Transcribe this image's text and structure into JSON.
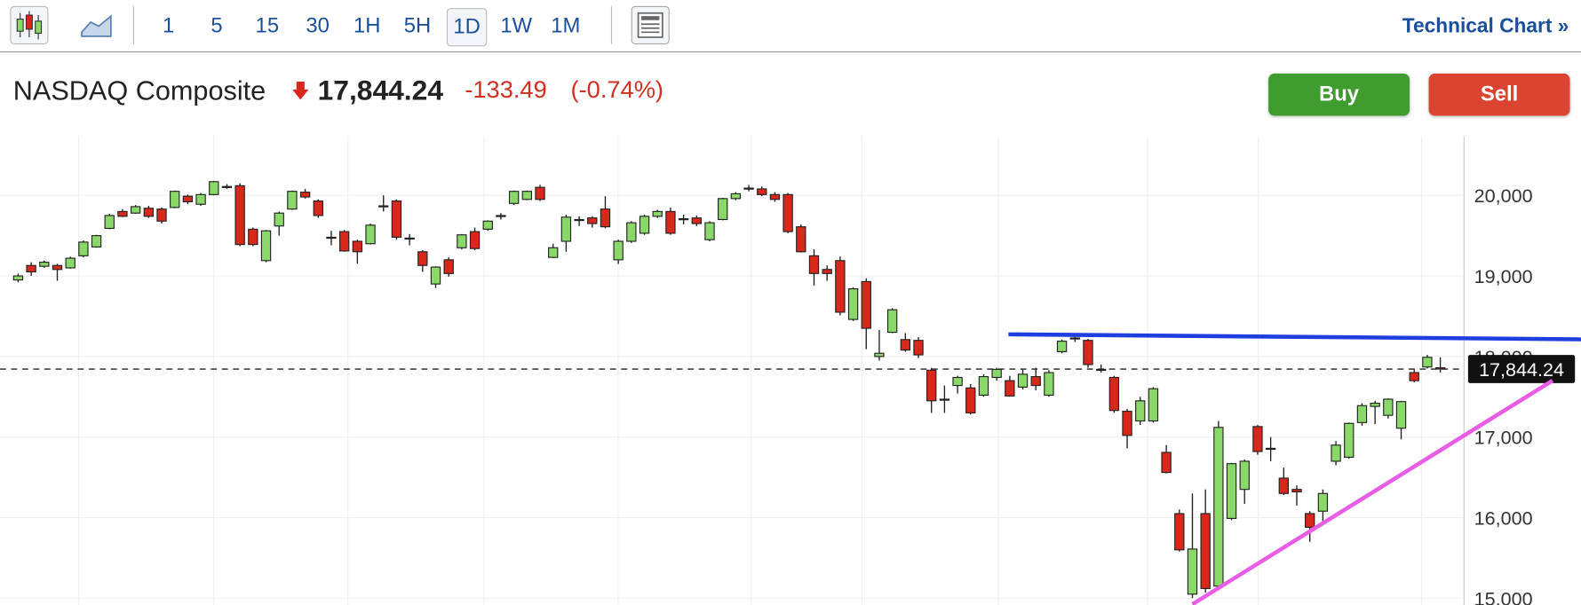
{
  "toolbar": {
    "intervals": [
      "1",
      "5",
      "15",
      "30",
      "1H",
      "5H",
      "1D",
      "1W",
      "1M"
    ],
    "link": "Technical Chart »"
  },
  "header": {
    "name": "NASDAQ Composite",
    "change": "-133.49",
    "change_percent": "(-0.74%)"
  },
  "buttons": {
    "buy": "Buy",
    "sell": "Sell"
  },
  "chart_data": {
    "type": "candlestick",
    "up_color": "#8ad86a",
    "down_color": "#d8281c",
    "open": [
      18950,
      19130,
      19120,
      19130,
      19100,
      19250,
      19360,
      19590,
      19800,
      19780,
      19840,
      19830,
      19850,
      19990,
      19890,
      20010,
      20100,
      20120,
      19580,
      19190,
      19620,
      19830,
      20040,
      19930,
      19480,
      19550,
      19430,
      19400,
      19860,
      19930,
      19470,
      19300,
      18900,
      19200,
      19350,
      19550,
      19580,
      19740,
      19900,
      19950,
      20100,
      19230,
      19430,
      19690,
      19720,
      19830,
      19200,
      19430,
      19530,
      19740,
      19800,
      19700,
      19720,
      19450,
      19700,
      19960,
      20080,
      20080,
      20010,
      20010,
      19610,
      19250,
      19080,
      19190,
      18460,
      18930,
      18000,
      18300,
      18210,
      18200,
      17830,
      17460,
      17640,
      17610,
      17520,
      17740,
      17700,
      17620,
      17750,
      17520,
      18060,
      18220,
      18200,
      17840,
      17740,
      17320,
      17200,
      17200,
      16810,
      16050,
      15050,
      16050,
      15150,
      15990,
      16350,
      17130,
      16860,
      16490,
      16350,
      16050,
      16080,
      16700,
      16750,
      17180,
      17380,
      17270,
      17110,
      17800,
      17870,
      17860
    ],
    "high": [
      19030,
      19170,
      19190,
      19150,
      19240,
      19440,
      19510,
      19770,
      19830,
      19880,
      19870,
      19850,
      20060,
      20010,
      20030,
      20180,
      20140,
      20150,
      19600,
      19570,
      19800,
      20060,
      20080,
      19950,
      19560,
      19570,
      19450,
      19650,
      20000,
      19950,
      19520,
      19320,
      19120,
      19230,
      19520,
      19600,
      19690,
      19780,
      20060,
      20060,
      20130,
      19400,
      19760,
      19740,
      19740,
      19990,
      19450,
      19680,
      19760,
      19820,
      19850,
      19760,
      19750,
      19680,
      19970,
      20040,
      20130,
      20110,
      20040,
      20030,
      19640,
      19330,
      19130,
      19240,
      18860,
      18970,
      18330,
      18600,
      18290,
      18240,
      17860,
      17640,
      17760,
      17660,
      17780,
      17860,
      17760,
      17850,
      17860,
      17830,
      18210,
      18270,
      18220,
      17900,
      17760,
      17350,
      17500,
      17620,
      16900,
      16100,
      16300,
      16350,
      17200,
      16680,
      16720,
      17150,
      17000,
      16620,
      16400,
      16080,
      16350,
      16950,
      17180,
      17420,
      17450,
      17480,
      17450,
      17850,
      18020,
      17990
    ],
    "low": [
      18920,
      19000,
      19100,
      18940,
      19090,
      19230,
      19350,
      19580,
      19730,
      19770,
      19720,
      19650,
      19840,
      19890,
      19870,
      20000,
      20080,
      19370,
      19370,
      19170,
      19500,
      19820,
      19960,
      19720,
      19380,
      19300,
      19150,
      19390,
      19800,
      19450,
      19380,
      19050,
      18850,
      18990,
      19330,
      19320,
      19560,
      19700,
      19880,
      19940,
      19930,
      19220,
      19300,
      19620,
      19600,
      19590,
      19150,
      19410,
      19510,
      19720,
      19510,
      19640,
      19620,
      19430,
      19690,
      19940,
      20050,
      19990,
      19920,
      19530,
      19290,
      18880,
      18940,
      18510,
      18440,
      18090,
      17950,
      18290,
      18060,
      17980,
      17300,
      17300,
      17540,
      17280,
      17500,
      17700,
      17500,
      17590,
      17580,
      17500,
      18040,
      18180,
      17860,
      17800,
      17300,
      16860,
      17150,
      17180,
      16550,
      15580,
      15000,
      15070,
      15120,
      15970,
      16170,
      16780,
      16700,
      16280,
      16150,
      15700,
      15950,
      16650,
      16730,
      17140,
      17160,
      17230,
      16970,
      17680,
      17850,
      17800
    ],
    "close": [
      19000,
      19050,
      19170,
      19080,
      19220,
      19420,
      19500,
      19750,
      19740,
      19860,
      19740,
      19680,
      20050,
      19920,
      20010,
      20170,
      20110,
      19390,
      19390,
      19560,
      19780,
      20050,
      19980,
      19750,
      19470,
      19310,
      19300,
      19630,
      19870,
      19480,
      19460,
      19130,
      19110,
      19030,
      19510,
      19340,
      19680,
      19750,
      20050,
      20050,
      19950,
      19350,
      19730,
      19700,
      19650,
      19610,
      19430,
      19660,
      19740,
      19800,
      19530,
      19710,
      19650,
      19660,
      19960,
      20020,
      20090,
      20010,
      19950,
      19550,
      19300,
      19030,
      19030,
      18550,
      18840,
      18350,
      18040,
      18580,
      18080,
      18020,
      17450,
      17470,
      17740,
      17300,
      17750,
      17840,
      17510,
      17780,
      17640,
      17800,
      18190,
      18230,
      17900,
      17830,
      17330,
      17020,
      17450,
      17600,
      16560,
      15600,
      15610,
      15120,
      17120,
      16670,
      16700,
      16820,
      16850,
      16300,
      16320,
      15880,
      16300,
      16900,
      17170,
      17390,
      17420,
      17470,
      17440,
      17700,
      17990,
      17844.24
    ],
    "ylim": [
      14912.5,
      20737.5
    ],
    "yticks": [
      {
        "value": 15000,
        "label": "15,000"
      },
      {
        "value": 16000,
        "label": "16,000"
      },
      {
        "value": 17000,
        "label": "17,000"
      },
      {
        "value": 18000,
        "label": "18,000"
      },
      {
        "value": 19000,
        "label": "19,000"
      },
      {
        "value": 20000,
        "label": "20,000"
      }
    ],
    "grid": true,
    "last_price": {
      "value": 17844.24,
      "label": "17,844.24"
    },
    "trendlines": [
      {
        "color": "#1e3ee0",
        "start": [
          75.9,
          18275
        ],
        "end": [
          119.8,
          18213
        ]
      },
      {
        "color": "#e85ce6",
        "start": [
          90.0,
          14925
        ],
        "end": [
          117.6,
          17700
        ]
      }
    ]
  }
}
